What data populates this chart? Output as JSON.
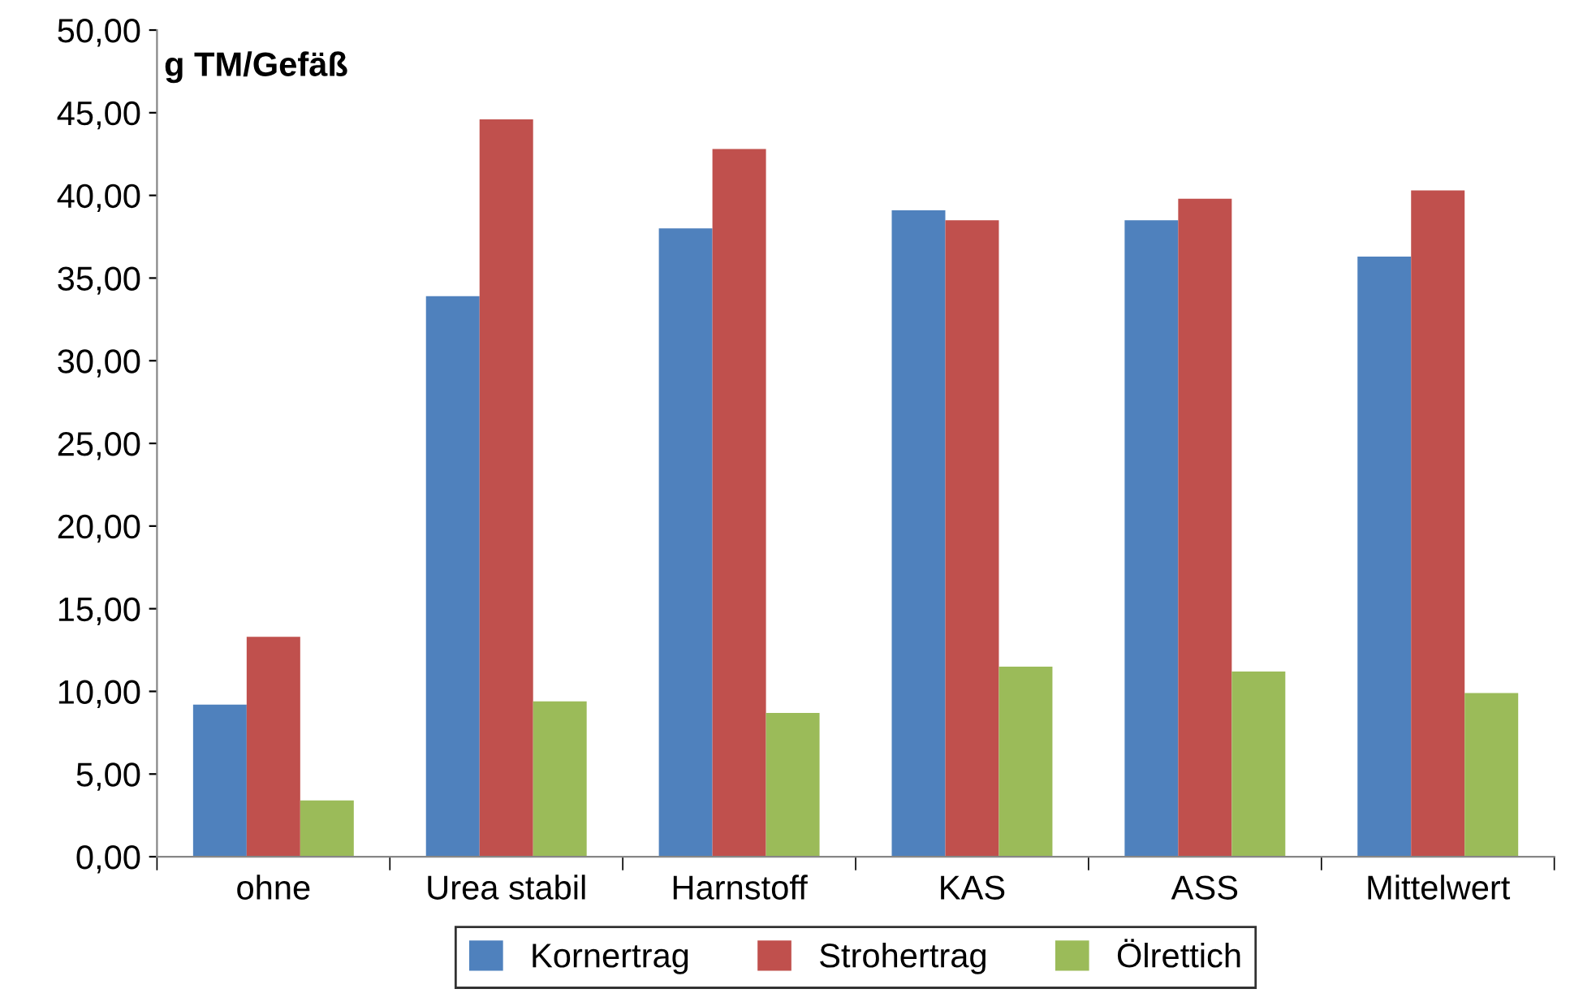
{
  "chart_data": {
    "type": "bar",
    "ylabel": "g TM/Gefäß",
    "categories": [
      "ohne",
      "Urea stabil",
      "Harnstoff",
      "KAS",
      "ASS",
      "Mittelwert"
    ],
    "series": [
      {
        "name": "Kornertrag",
        "color": "#4f81bd",
        "values": [
          9.2,
          33.9,
          38.0,
          39.1,
          38.5,
          36.3
        ]
      },
      {
        "name": "Strohertrag",
        "color": "#c0504d",
        "values": [
          13.3,
          44.6,
          42.8,
          38.5,
          39.8,
          40.3
        ]
      },
      {
        "name": "Ölrettich",
        "color": "#9bbb59",
        "values": [
          3.4,
          9.4,
          8.7,
          11.5,
          11.2,
          9.9
        ]
      }
    ],
    "ylim": [
      0,
      50
    ],
    "yticks": [
      {
        "value": 0,
        "label": "0,00"
      },
      {
        "value": 5,
        "label": "5,00"
      },
      {
        "value": 10,
        "label": "10,00"
      },
      {
        "value": 15,
        "label": "15,00"
      },
      {
        "value": 20,
        "label": "20,00"
      },
      {
        "value": 25,
        "label": "25,00"
      },
      {
        "value": 30,
        "label": "30,00"
      },
      {
        "value": 35,
        "label": "35,00"
      },
      {
        "value": 40,
        "label": "40,00"
      },
      {
        "value": 45,
        "label": "45,00"
      },
      {
        "value": 50,
        "label": "50,00"
      }
    ],
    "grid": false,
    "legend": "bottom"
  }
}
